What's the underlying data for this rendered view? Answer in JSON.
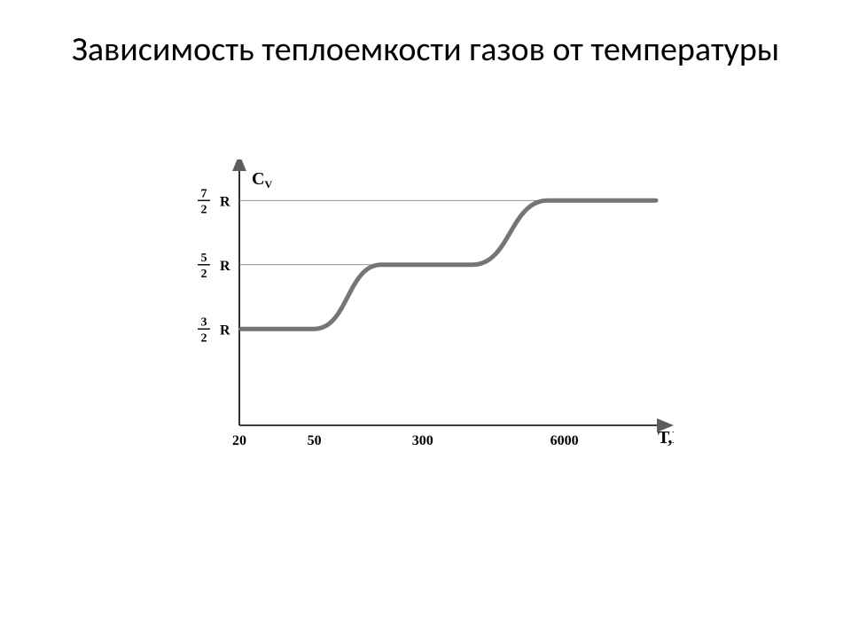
{
  "title": "Зависимость теплоемкости газов от температуры",
  "chart": {
    "type": "line-step",
    "background_color": "#ffffff",
    "axis_color": "#000000",
    "axis_width": 1.6,
    "arrowhead_color": "#5c5c5c",
    "guide_color": "#6d6d6d",
    "guide_width": 0.8,
    "curve_color": "#757575",
    "curve_width": 5,
    "ylabel": "Cᵥ",
    "ylabel_sub": "V",
    "ylabel_fontsize": 20,
    "xlabel": "Т,К",
    "xlabel_fontsize": 20,
    "tick_fontsize": 16,
    "frac_fontsize": 14,
    "y_ticks": [
      {
        "num": "3",
        "den": "2",
        "R": "R",
        "value": 1.5
      },
      {
        "num": "5",
        "den": "2",
        "R": "R",
        "value": 2.5
      },
      {
        "num": "7",
        "den": "2",
        "R": "R",
        "value": 3.5
      }
    ],
    "x_ticks": [
      {
        "label": "20",
        "pos": 0.0
      },
      {
        "label": "50",
        "pos": 0.18
      },
      {
        "label": "300",
        "pos": 0.44
      },
      {
        "label": "6000",
        "pos": 0.78
      }
    ],
    "plateaus": [
      {
        "y": 1.5,
        "x_start": 0.0,
        "x_end": 0.18
      },
      {
        "y": 2.5,
        "x_start": 0.34,
        "x_end": 0.56
      },
      {
        "y": 3.5,
        "x_start": 0.74,
        "x_end": 1.0
      }
    ],
    "xlim": [
      0,
      1
    ],
    "ylim": [
      0,
      4
    ]
  }
}
